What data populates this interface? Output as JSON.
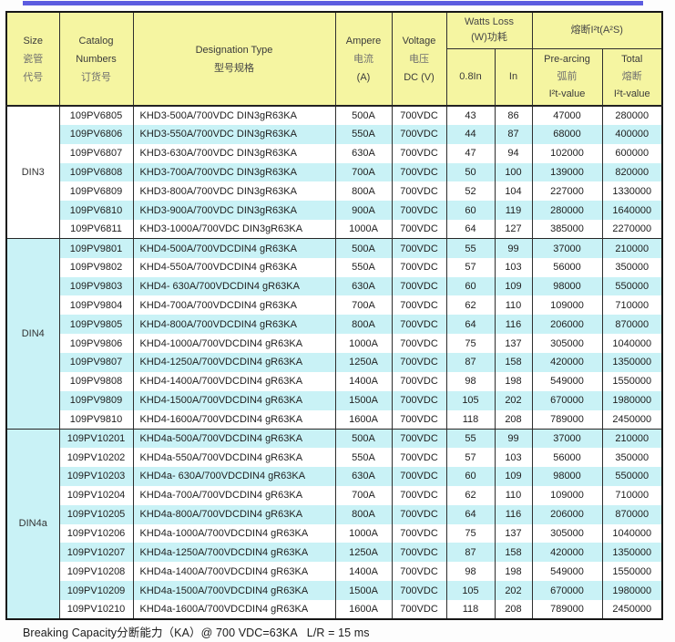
{
  "accent_colors": {
    "top_line": "#5c5ce0",
    "header_bg": "#f5f5a1",
    "stripe_bg": "#c9f2f6"
  },
  "header": {
    "size": {
      "en": "Size",
      "cn": "瓷管\n代号"
    },
    "catalog": {
      "en": "Catalog\nNumbers",
      "cn": "订货号"
    },
    "designation": {
      "en": "Designation Type",
      "cn": "型号规格"
    },
    "ampere": {
      "en": "Ampere",
      "cn": "电流",
      "unit": "(A)"
    },
    "voltage": {
      "en": "Voltage",
      "cn": "电压",
      "unit": "DC (V)"
    },
    "watts_loss": {
      "en": "Watts Loss",
      "cn": "(W)功耗"
    },
    "watts_sub": {
      "p08": "0.8In",
      "p10": "In"
    },
    "i2t": {
      "title": "熔断I²t(A²S)"
    },
    "prearcing": {
      "en": "Pre-arcing",
      "cn": "弧前",
      "unit": "I²t-value"
    },
    "total": {
      "en": "Total",
      "cn": "熔断",
      "unit": "I²t-value"
    }
  },
  "columns": [
    "catalog_number",
    "designation_type",
    "ampere",
    "voltage",
    "watts_0.8In",
    "watts_In",
    "prearcing_i2t",
    "total_i2t"
  ],
  "sections": [
    {
      "size": "DIN3",
      "rows": [
        [
          "109PV6805",
          "KHD3-500A/700VDC DIN3gR63KA",
          "500A",
          "700VDC",
          "43",
          "86",
          "47000",
          "280000"
        ],
        [
          "109PV6806",
          "KHD3-550A/700VDC DIN3gR63KA",
          "550A",
          "700VDC",
          "44",
          "87",
          "68000",
          "400000"
        ],
        [
          "109PV6807",
          "KHD3-630A/700VDC DIN3gR63KA",
          "630A",
          "700VDC",
          "47",
          "94",
          "102000",
          "600000"
        ],
        [
          "109PV6808",
          "KHD3-700A/700VDC DIN3gR63KA",
          "700A",
          "700VDC",
          "50",
          "100",
          "139000",
          "820000"
        ],
        [
          "109PV6809",
          "KHD3-800A/700VDC DIN3gR63KA",
          "800A",
          "700VDC",
          "52",
          "104",
          "227000",
          "1330000"
        ],
        [
          "109PV6810",
          "KHD3-900A/700VDC DIN3gR63KA",
          "900A",
          "700VDC",
          "60",
          "119",
          "280000",
          "1640000"
        ],
        [
          "109PV6811",
          "KHD3-1000A/700VDC DIN3gR63KA",
          "1000A",
          "700VDC",
          "64",
          "127",
          "385000",
          "2270000"
        ]
      ]
    },
    {
      "size": "DIN4",
      "rows": [
        [
          "109PV9801",
          "KHD4-500A/700VDCDIN4 gR63KA",
          "500A",
          "700VDC",
          "55",
          "99",
          "37000",
          "210000"
        ],
        [
          "109PV9802",
          "KHD4-550A/700VDCDIN4 gR63KA",
          "550A",
          "700VDC",
          "57",
          "103",
          "56000",
          "350000"
        ],
        [
          "109PV9803",
          "KHD4- 630A/700VDCDIN4 gR63KA",
          "630A",
          "700VDC",
          "60",
          "109",
          "98000",
          "550000"
        ],
        [
          "109PV9804",
          "KHD4-700A/700VDCDIN4 gR63KA",
          "700A",
          "700VDC",
          "62",
          "110",
          "109000",
          "710000"
        ],
        [
          "109PV9805",
          "KHD4-800A/700VDCDIN4 gR63KA",
          "800A",
          "700VDC",
          "64",
          "116",
          "206000",
          "870000"
        ],
        [
          "109PV9806",
          "KHD4-1000A/700VDCDIN4 gR63KA",
          "1000A",
          "700VDC",
          "75",
          "137",
          "305000",
          "1040000"
        ],
        [
          "109PV9807",
          "KHD4-1250A/700VDCDIN4 gR63KA",
          "1250A",
          "700VDC",
          "87",
          "158",
          "420000",
          "1350000"
        ],
        [
          "109PV9808",
          "KHD4-1400A/700VDCDIN4 gR63KA",
          "1400A",
          "700VDC",
          "98",
          "198",
          "549000",
          "1550000"
        ],
        [
          "109PV9809",
          "KHD4-1500A/700VDCDIN4 gR63KA",
          "1500A",
          "700VDC",
          "105",
          "202",
          "670000",
          "1980000"
        ],
        [
          "109PV9810",
          "KHD4-1600A/700VDCDIN4 gR63KA",
          "1600A",
          "700VDC",
          "118",
          "208",
          "789000",
          "2450000"
        ]
      ]
    },
    {
      "size": "DIN4a",
      "rows": [
        [
          "109PV10201",
          "KHD4a-500A/700VDCDIN4 gR63KA",
          "500A",
          "700VDC",
          "55",
          "99",
          "37000",
          "210000"
        ],
        [
          "109PV10202",
          "KHD4a-550A/700VDCDIN4 gR63KA",
          "550A",
          "700VDC",
          "57",
          "103",
          "56000",
          "350000"
        ],
        [
          "109PV10203",
          "KHD4a- 630A/700VDCDIN4 gR63KA",
          "630A",
          "700VDC",
          "60",
          "109",
          "98000",
          "550000"
        ],
        [
          "109PV10204",
          "KHD4a-700A/700VDCDIN4 gR63KA",
          "700A",
          "700VDC",
          "62",
          "110",
          "109000",
          "710000"
        ],
        [
          "109PV10205",
          "KHD4a-800A/700VDCDIN4 gR63KA",
          "800A",
          "700VDC",
          "64",
          "116",
          "206000",
          "870000"
        ],
        [
          "109PV10206",
          "KHD4a-1000A/700VDCDIN4 gR63KA",
          "1000A",
          "700VDC",
          "75",
          "137",
          "305000",
          "1040000"
        ],
        [
          "109PV10207",
          "KHD4a-1250A/700VDCDIN4 gR63KA",
          "1250A",
          "700VDC",
          "87",
          "158",
          "420000",
          "1350000"
        ],
        [
          "109PV10208",
          "KHD4a-1400A/700VDCDIN4 gR63KA",
          "1400A",
          "700VDC",
          "98",
          "198",
          "549000",
          "1550000"
        ],
        [
          "109PV10209",
          "KHD4a-1500A/700VDCDIN4 gR63KA",
          "1500A",
          "700VDC",
          "105",
          "202",
          "670000",
          "1980000"
        ],
        [
          "109PV10210",
          "KHD4a-1600A/700VDCDIN4 gR63KA",
          "1600A",
          "700VDC",
          "118",
          "208",
          "789000",
          "2450000"
        ]
      ]
    }
  ],
  "footer": {
    "note": "Breaking Capacity分断能力（KA）@ 700 VDC=63KA   L/R = 15 ms"
  }
}
